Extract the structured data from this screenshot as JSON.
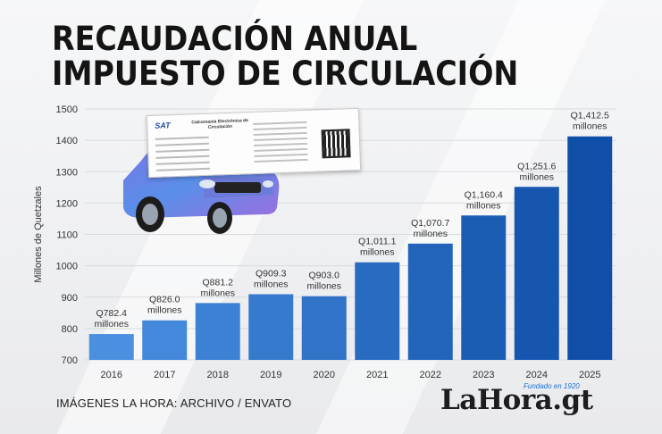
{
  "title": {
    "line1": "RECAUDACIÓN ANUAL",
    "line2": "IMPUESTO DE CIRCULACIÓN"
  },
  "credit": "IMÁGENES LA HORA: ARCHIVO / ENVATO",
  "logo": {
    "name": "LaHora.gt",
    "tagline": "Fundado en 1920"
  },
  "card": {
    "brand": "SAT",
    "heading": "Calcomanía Electrónica de Circulación"
  },
  "colors": {
    "bar_light": "#4a8fe0",
    "bar_dark": "#0f4fa8",
    "axis_text": "#333333",
    "grid": "#d7dadf"
  },
  "chart_data": {
    "type": "bar",
    "title": "RECAUDACIÓN ANUAL IMPUESTO DE CIRCULACIÓN",
    "xlabel": "",
    "ylabel": "Millones de Quetzales",
    "ylim": [
      700,
      1500
    ],
    "yticks": [
      700,
      800,
      900,
      1000,
      1100,
      1200,
      1300,
      1400,
      1500
    ],
    "grid": true,
    "categories": [
      "2016",
      "2017",
      "2018",
      "2019",
      "2020",
      "2021",
      "2022",
      "2023",
      "2024",
      "2025"
    ],
    "values": [
      782.4,
      826.0,
      881.2,
      909.3,
      903.0,
      1011.1,
      1070.7,
      1160.4,
      1251.6,
      1412.5
    ],
    "data_labels": [
      "Q782.4",
      "Q826.0",
      "Q881.2",
      "Q909.3",
      "Q903.0",
      "Q1,011.1",
      "Q1,070.7",
      "Q1,160.4",
      "Q1,251.6",
      "Q1,412.5"
    ],
    "data_label_unit": "millones"
  }
}
